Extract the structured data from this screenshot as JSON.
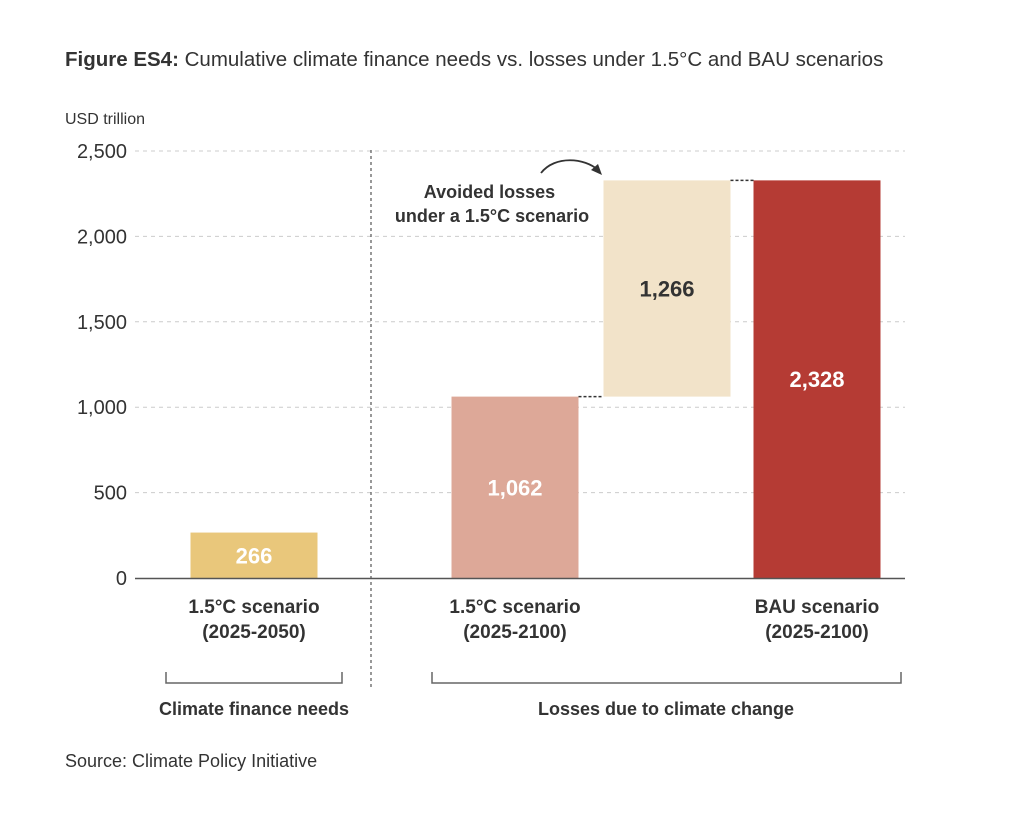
{
  "title_bold": "Figure ES4:",
  "title_rest": " Cumulative climate finance needs vs. losses under 1.5°C and BAU scenarios",
  "source": "Source: Climate Policy Initiative",
  "chart_data": {
    "type": "bar",
    "subtype": "waterfall",
    "ylabel": "USD trillion",
    "ylim": [
      0,
      2500
    ],
    "yticks": [
      0,
      500,
      1000,
      1500,
      2000,
      2500
    ],
    "ytick_labels": [
      "0",
      "500",
      "1,000",
      "1,500",
      "2,000",
      "2,500"
    ],
    "grid": true,
    "bars": [
      {
        "category": [
          "1.5°C scenario",
          "(2025-2050)"
        ],
        "value": 266,
        "base": 0,
        "label": "266",
        "color": "#E9C77B",
        "label_color": "#ffffff"
      },
      {
        "category": [
          "1.5°C scenario",
          "(2025-2100)"
        ],
        "value": 1062,
        "base": 0,
        "label": "1,062",
        "color": "#DDA898",
        "label_color": "#ffffff"
      },
      {
        "category": [
          "",
          ""
        ],
        "value": 1266,
        "base": 1062,
        "label": "1,266",
        "color": "#F2E3C9",
        "label_color": "#333333"
      },
      {
        "category": [
          "BAU scenario",
          "(2025-2100)"
        ],
        "value": 2328,
        "base": 0,
        "label": "2,328",
        "color": "#B53B34",
        "label_color": "#ffffff"
      }
    ],
    "annotation": [
      "Avoided losses",
      "under a 1.5°C scenario"
    ],
    "groups": [
      "Climate finance needs",
      "Losses due to climate change"
    ]
  }
}
